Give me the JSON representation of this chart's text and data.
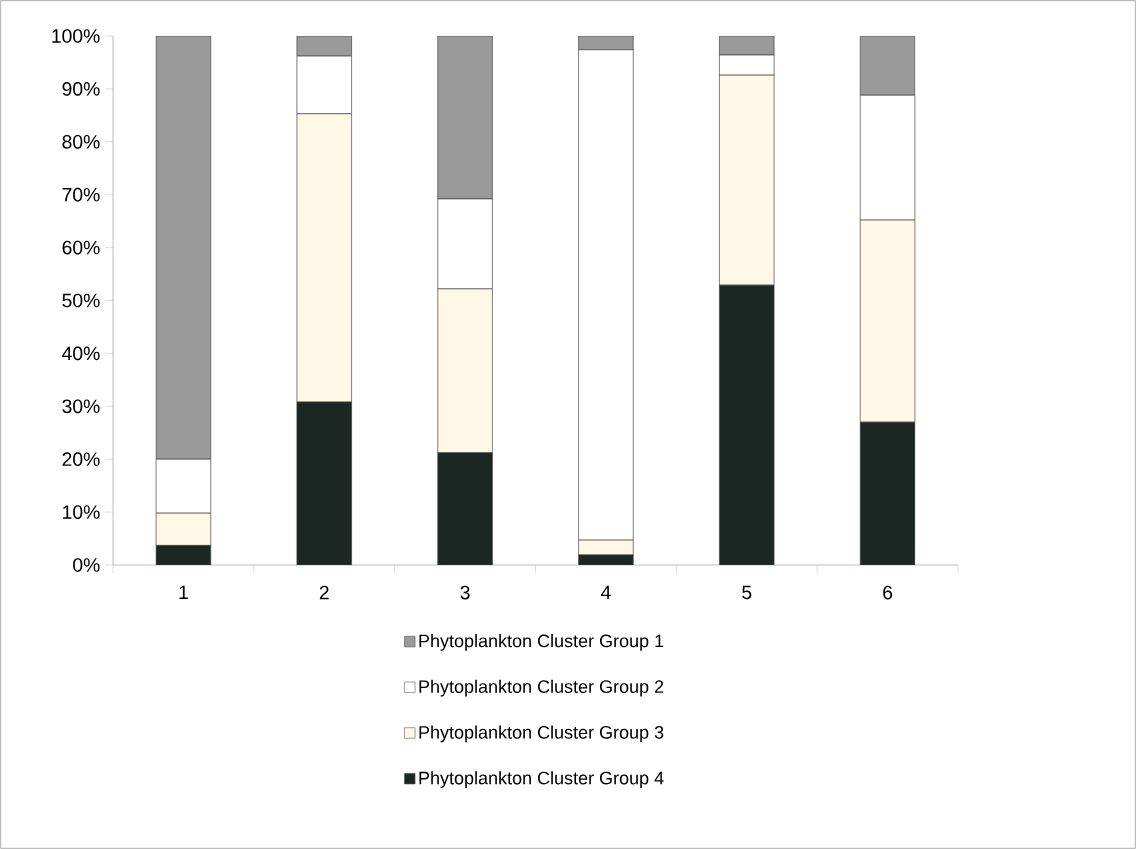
{
  "chart_data": {
    "type": "bar",
    "stacked": true,
    "categories": [
      "1",
      "2",
      "3",
      "4",
      "5",
      "6"
    ],
    "series": [
      {
        "name": "Phytoplankton Cluster Group 4",
        "color": "#1c2622",
        "values": [
          3.7,
          30.8,
          21.2,
          1.9,
          52.9,
          27.0
        ]
      },
      {
        "name": "Phytoplankton Cluster Group 3",
        "color": "#fff8e6",
        "values": [
          6.1,
          54.5,
          31.0,
          2.8,
          39.7,
          38.2
        ]
      },
      {
        "name": "Phytoplankton Cluster Group 2",
        "color": "#ffffff",
        "values": [
          10.2,
          10.9,
          17.0,
          92.7,
          3.8,
          23.6
        ]
      },
      {
        "name": "Phytoplankton Cluster Group 1",
        "color": "#9a9a9a",
        "values": [
          80.0,
          3.8,
          30.8,
          2.6,
          3.6,
          11.2
        ]
      }
    ],
    "ylim": [
      0,
      100
    ],
    "yticks": [
      {
        "value": 0,
        "label": "0%"
      },
      {
        "value": 10,
        "label": "10%"
      },
      {
        "value": 20,
        "label": "20%"
      },
      {
        "value": 30,
        "label": "30%"
      },
      {
        "value": 40,
        "label": "40%"
      },
      {
        "value": 50,
        "label": "50%"
      },
      {
        "value": 60,
        "label": "60%"
      },
      {
        "value": 70,
        "label": "70%"
      },
      {
        "value": 80,
        "label": "80%"
      },
      {
        "value": 90,
        "label": "90%"
      },
      {
        "value": 100,
        "label": "100%"
      }
    ],
    "legend": "bottom"
  }
}
